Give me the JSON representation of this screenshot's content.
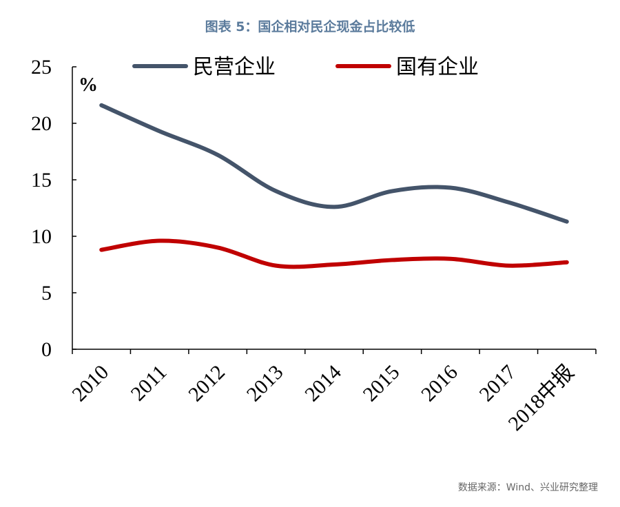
{
  "chart_data": {
    "type": "line",
    "title": "图表 5：国企相对民企现金占比较低",
    "y_unit": "%",
    "source": "数据来源：Wind、兴业研究整理",
    "categories": [
      "2010",
      "2011",
      "2012",
      "2013",
      "2014",
      "2015",
      "2016",
      "2017",
      "2018中报"
    ],
    "series": [
      {
        "name": "民营企业",
        "color": "#44546a",
        "values": [
          21.6,
          19.3,
          17.2,
          14.0,
          12.6,
          14.0,
          14.3,
          13.0,
          11.3
        ]
      },
      {
        "name": "国有企业",
        "color": "#c00000",
        "values": [
          8.8,
          9.6,
          9.0,
          7.4,
          7.5,
          7.9,
          8.0,
          7.4,
          7.7
        ]
      }
    ],
    "ylim": [
      0,
      25
    ],
    "yticks": [
      0,
      5,
      10,
      15,
      20,
      25
    ],
    "grid": false,
    "legend": "top"
  }
}
